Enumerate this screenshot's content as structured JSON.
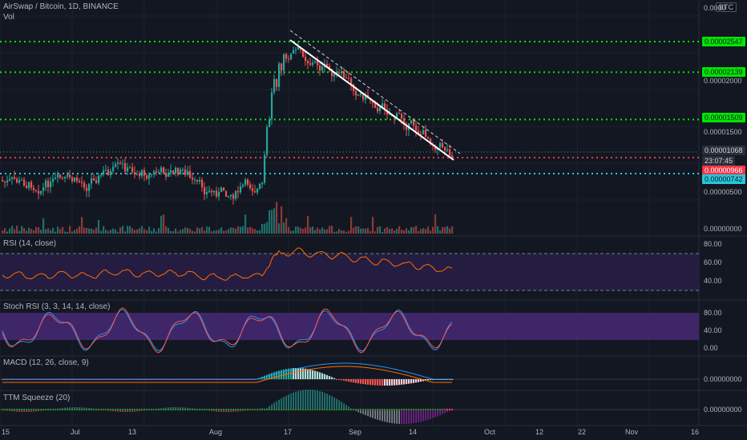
{
  "header": {
    "title": "AirSwap / Bitcoin, 1D, BINANCE",
    "volume_label": "Vol",
    "currency_badge": "BTC"
  },
  "price_axis": {
    "top_label": "0.0000",
    "labels": [
      {
        "text": "0.00002000",
        "value": 2e-05
      },
      {
        "text": "0.00001500",
        "value": 1.5e-05
      },
      {
        "text": "0.00000500",
        "value": 5e-06
      },
      {
        "text": "0.00000000",
        "value": 0.0
      }
    ],
    "level_tags": [
      {
        "text": "0.00002547",
        "value": 2.547e-05,
        "color": "#00e600"
      },
      {
        "text": "0.00002139",
        "value": 2.139e-05,
        "color": "#00e600"
      },
      {
        "text": "0.00001509",
        "value": 1.509e-05,
        "color": "#00e600"
      },
      {
        "text": "0.00001068",
        "value": 1.068e-05,
        "color": "#2a2e39"
      },
      {
        "text": "23:07:45",
        "value": 1.068e-05,
        "color": "#2a2e39"
      },
      {
        "text": "0.00000966",
        "value": 9.66e-06,
        "color": "#f23645"
      },
      {
        "text": "0.00000742",
        "value": 7.42e-06,
        "color": "#26c6da"
      }
    ]
  },
  "panes": {
    "rsi": {
      "title": "RSI (14, close)",
      "axis": [
        "80.00",
        "60.00",
        "40.00"
      ]
    },
    "stoch": {
      "title": "Stoch RSI (3, 3, 14, 14, close)",
      "axis": [
        "80.00",
        "40.00",
        "0.00"
      ]
    },
    "macd": {
      "title": "MACD (12, 26, close, 9)",
      "axis": [
        "0.00000000"
      ]
    },
    "ttm": {
      "title": "TTM Squeeze (20)",
      "axis": [
        "0.00000000"
      ]
    }
  },
  "time_axis": [
    "15",
    "Jul",
    "13",
    "Aug",
    "17",
    "Sep",
    "14",
    "Oct",
    "12",
    "22",
    "Nov",
    "16"
  ],
  "colors": {
    "up": "#26a69a",
    "down": "#ef5350",
    "level_green": "#00e600",
    "level_red": "#f23645",
    "level_cyan": "#26c6da",
    "rsi_line": "#ff6d00",
    "stoch_k": "#2196f3",
    "stoch_d": "#ff5252"
  }
}
